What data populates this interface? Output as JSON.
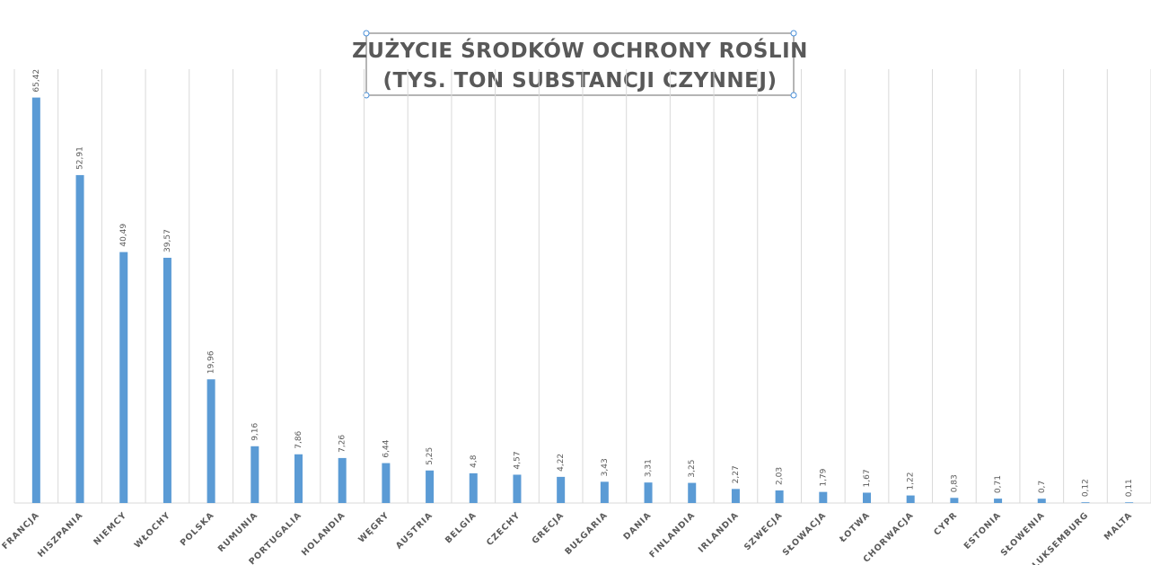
{
  "chart_data": {
    "type": "bar",
    "title": [
      "ZUŻYCIE ŚRODKÓW OCHRONY ROŚLIN",
      "(TYS. TON SUBSTANCJI CZYNNEJ)"
    ],
    "categories": [
      "FRANCJA",
      "HISZPANIA",
      "NIEMCY",
      "WŁOCHY",
      "POLSKA",
      "RUMUNIA",
      "PORTUGALIA",
      "HOLANDIA",
      "WĘGRY",
      "AUSTRIA",
      "BELGIA",
      "CZECHY",
      "GRECJA",
      "BUŁGARIA",
      "DANIA",
      "FINLANDIA",
      "IRLANDIA",
      "SZWECJA",
      "SŁOWACJA",
      "ŁOTWA",
      "CHORWACJA",
      "CYPR",
      "ESTONIA",
      "SŁOWENIA",
      "LUKSEMBURG",
      "MALTA"
    ],
    "values": [
      65.42,
      52.91,
      40.49,
      39.57,
      19.96,
      9.16,
      7.86,
      7.26,
      6.44,
      5.25,
      4.8,
      4.57,
      4.22,
      3.43,
      3.31,
      3.25,
      2.27,
      2.03,
      1.79,
      1.67,
      1.22,
      0.83,
      0.71,
      0.7,
      0.12,
      0.11
    ],
    "value_labels": [
      "65,42",
      "52,91",
      "40,49",
      "39,57",
      "19,96",
      "9,16",
      "7,86",
      "7,26",
      "6,44",
      "5,25",
      "4,8",
      "4,57",
      "4,22",
      "3,43",
      "3,31",
      "3,25",
      "2,27",
      "2,03",
      "1,79",
      "1,67",
      "1,22",
      "0,83",
      "0,71",
      "0,7",
      "0,12",
      "0,11"
    ],
    "color": "#5b9bd5",
    "ylim": [
      0,
      70
    ]
  }
}
